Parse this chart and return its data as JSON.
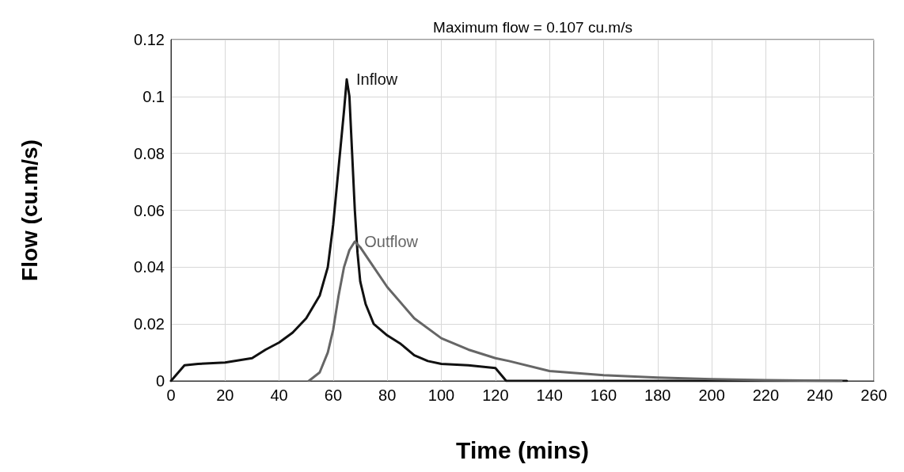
{
  "chart_data": {
    "type": "line",
    "title": "Maximum flow = 0.107 cu.m/s",
    "xlabel": "Time (mins)",
    "ylabel": "Flow (cu.m/s)",
    "xlim": [
      0,
      260
    ],
    "xticks": [
      0,
      20,
      40,
      60,
      80,
      100,
      120,
      140,
      160,
      180,
      200,
      220,
      240,
      260
    ],
    "ylim": [
      0,
      0.12
    ],
    "yticks": [
      0,
      0.02,
      0.04,
      0.06,
      0.08,
      0.1,
      0.12
    ],
    "grid": true,
    "legend": false,
    "marker": "none",
    "line_style": "solid",
    "series": [
      {
        "name": "Inflow",
        "color": "#111111",
        "x": [
          0,
          5,
          10,
          20,
          30,
          35,
          40,
          45,
          50,
          55,
          58,
          60,
          62,
          64,
          65,
          66,
          67,
          68,
          69,
          70,
          72,
          75,
          80,
          85,
          90,
          95,
          100,
          110,
          120,
          124,
          250
        ],
        "values": [
          0,
          0.0055,
          0.006,
          0.0065,
          0.008,
          0.011,
          0.0135,
          0.017,
          0.022,
          0.03,
          0.04,
          0.055,
          0.075,
          0.095,
          0.106,
          0.1,
          0.08,
          0.06,
          0.045,
          0.035,
          0.027,
          0.02,
          0.016,
          0.013,
          0.009,
          0.007,
          0.006,
          0.0055,
          0.0045,
          0,
          0
        ]
      },
      {
        "name": "Outflow",
        "color": "#666666",
        "x": [
          51,
          55,
          58,
          60,
          62,
          64,
          66,
          68,
          70,
          75,
          80,
          90,
          100,
          110,
          120,
          125,
          140,
          160,
          180,
          200,
          220,
          240,
          248
        ],
        "values": [
          0,
          0.003,
          0.01,
          0.018,
          0.03,
          0.04,
          0.046,
          0.049,
          0.047,
          0.04,
          0.033,
          0.022,
          0.015,
          0.011,
          0.008,
          0.007,
          0.0035,
          0.002,
          0.0012,
          0.0006,
          0.0003,
          0.0001,
          0
        ]
      }
    ]
  }
}
